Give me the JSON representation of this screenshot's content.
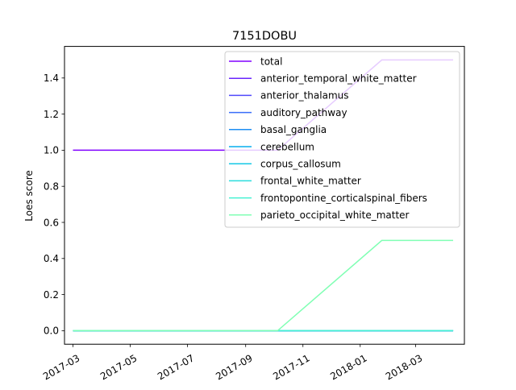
{
  "chart_data": {
    "type": "line",
    "title": "7151DOBU",
    "xlabel": "",
    "ylabel": "Loes score",
    "x_ticks": [
      "2017-03",
      "2017-05",
      "2017-07",
      "2017-09",
      "2017-11",
      "2018-01",
      "2018-03"
    ],
    "y_ticks": [
      "0.0",
      "0.2",
      "0.4",
      "0.6",
      "0.8",
      "1.0",
      "1.2",
      "1.4"
    ],
    "xlim": [
      "2017-02-20",
      "2018-04-22"
    ],
    "ylim": [
      -0.075,
      1.575
    ],
    "grid": false,
    "legend_position": "top-right",
    "series": [
      {
        "name": "total",
        "color": "#8000ff",
        "points": [
          [
            "2017-03-01",
            1.0
          ],
          [
            "2017-10-05",
            1.0
          ],
          [
            "2018-01-24",
            1.5
          ],
          [
            "2018-04-10",
            1.5
          ]
        ]
      },
      {
        "name": "anterior_temporal_white_matter",
        "color": "#6a24fe",
        "points": [
          [
            "2017-03-01",
            0.0
          ],
          [
            "2018-04-10",
            0.0
          ]
        ]
      },
      {
        "name": "anterior_thalamus",
        "color": "#5049fc",
        "points": [
          [
            "2017-03-01",
            0.0
          ],
          [
            "2018-04-10",
            0.0
          ]
        ]
      },
      {
        "name": "auditory_pathway",
        "color": "#386df9",
        "points": [
          [
            "2017-03-01",
            0.0
          ],
          [
            "2018-04-10",
            0.0
          ]
        ]
      },
      {
        "name": "basal_ganglia",
        "color": "#1e8ef3",
        "points": [
          [
            "2017-03-01",
            0.0
          ],
          [
            "2018-04-10",
            0.0
          ]
        ]
      },
      {
        "name": "cerebellum",
        "color": "#06aeed",
        "points": [
          [
            "2017-03-01",
            0.0
          ],
          [
            "2018-04-10",
            0.0
          ]
        ]
      },
      {
        "name": "corpus_callosum",
        "color": "#14c8e6",
        "points": [
          [
            "2017-03-01",
            0.0
          ],
          [
            "2018-04-10",
            0.0
          ]
        ]
      },
      {
        "name": "frontal_white_matter",
        "color": "#2adddd",
        "points": [
          [
            "2017-03-01",
            0.0
          ],
          [
            "2018-04-10",
            0.0
          ]
        ]
      },
      {
        "name": "frontopontine_corticalspinal_fibers",
        "color": "#46f1d3",
        "points": [
          [
            "2017-03-01",
            0.0
          ],
          [
            "2018-04-10",
            0.0
          ]
        ]
      },
      {
        "name": "parieto_occipital_white_matter",
        "color": "#80ffb4",
        "points": [
          [
            "2017-03-01",
            0.0
          ],
          [
            "2017-10-05",
            0.0
          ],
          [
            "2018-01-24",
            0.5
          ],
          [
            "2018-04-10",
            0.5
          ]
        ]
      }
    ]
  }
}
